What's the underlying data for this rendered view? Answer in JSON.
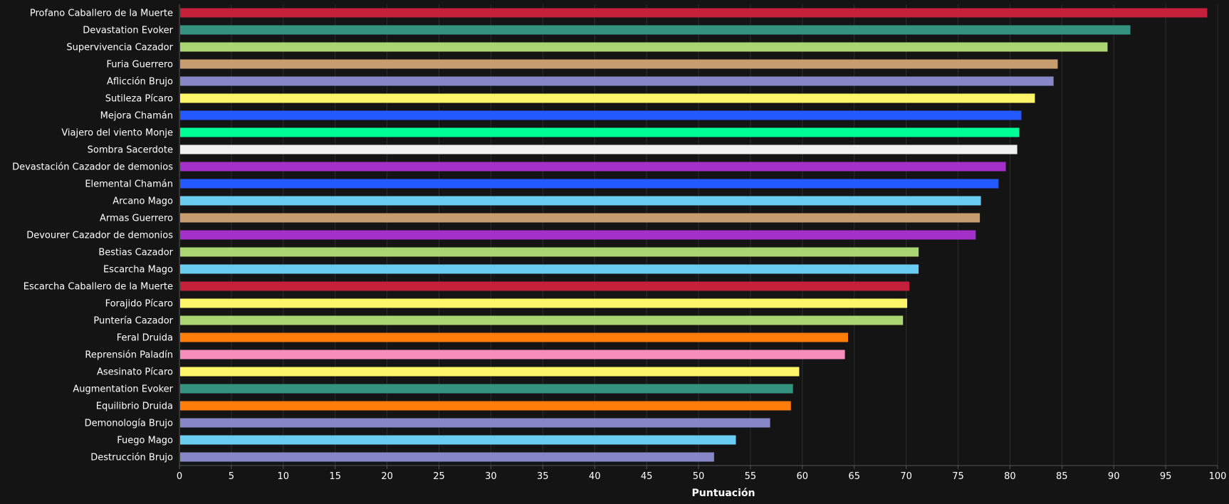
{
  "chart_data": {
    "type": "bar",
    "orientation": "horizontal",
    "title": "",
    "xlabel": "Puntuación",
    "ylabel": "",
    "xlim": [
      0,
      100
    ],
    "xticks": [
      0,
      5,
      10,
      15,
      20,
      25,
      30,
      35,
      40,
      45,
      50,
      55,
      60,
      65,
      70,
      75,
      80,
      85,
      90,
      95,
      100
    ],
    "grid": "vertical",
    "legend": "none",
    "categories": [
      "Profano Caballero de la Muerte",
      "Devastation Evoker",
      "Supervivencia Cazador",
      "Furia Guerrero",
      "Aflicción Brujo",
      "Sutileza Pícaro",
      "Mejora Chamán",
      "Viajero del viento Monje",
      "Sombra Sacerdote",
      "Devastación Cazador de demonios",
      "Elemental Chamán",
      "Arcano Mago",
      "Armas Guerrero",
      "Devourer Cazador de demonios",
      "Bestias Cazador",
      "Escarcha Mago",
      "Escarcha Caballero de la Muerte",
      "Forajido Pícaro",
      "Puntería Cazador",
      "Feral Druida",
      "Reprensión Paladín",
      "Asesinato Pícaro",
      "Augmentation Evoker",
      "Equilibrio Druida",
      "Demonología Brujo",
      "Fuego Mago",
      "Destrucción Brujo"
    ],
    "values": [
      99,
      91.6,
      89.4,
      84.6,
      84.2,
      82.4,
      81.1,
      80.9,
      80.7,
      79.6,
      78.9,
      77.2,
      77.1,
      76.7,
      71.2,
      71.2,
      70.3,
      70.1,
      69.7,
      64.4,
      64.1,
      59.7,
      59.1,
      58.9,
      56.9,
      53.6,
      51.5
    ],
    "colors": [
      "#c41f3b",
      "#33937f",
      "#abd473",
      "#c79c6e",
      "#8787c8",
      "#fff569",
      "#2459ff",
      "#00ff96",
      "#f0f0f0",
      "#a330c9",
      "#2459ff",
      "#69ccf0",
      "#c79c6e",
      "#a330c9",
      "#abd473",
      "#69ccf0",
      "#c41f3b",
      "#fff569",
      "#abd473",
      "#ff7d0a",
      "#f58cba",
      "#fff569",
      "#33937f",
      "#ff7d0a",
      "#8787c8",
      "#69ccf0",
      "#8787c8"
    ]
  },
  "style": {
    "background": "#141414",
    "grid_color": "#2e2e2e",
    "axis_color": "#555555",
    "text_color": "#ffffff"
  }
}
